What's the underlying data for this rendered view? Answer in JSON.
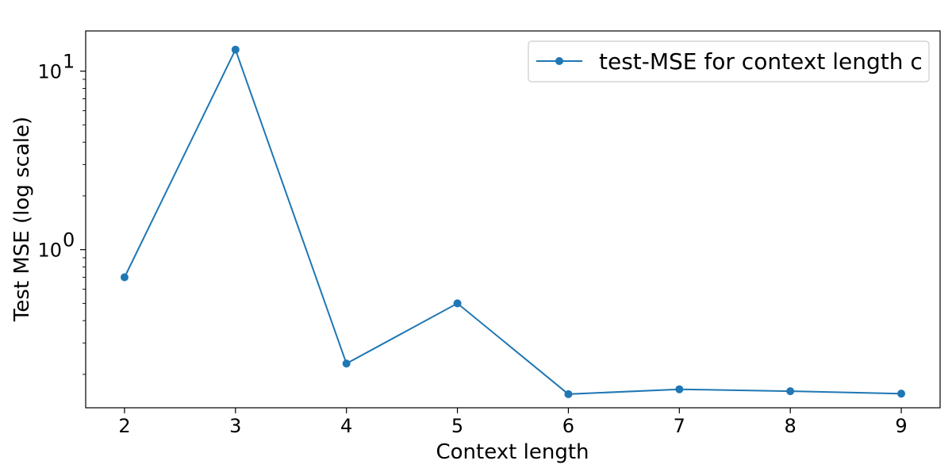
{
  "chart_data": {
    "type": "line",
    "x": [
      2,
      3,
      4,
      5,
      6,
      7,
      8,
      9
    ],
    "series": [
      {
        "name": "test-MSE for context length c",
        "values": [
          0.7,
          13.2,
          0.23,
          0.5,
          0.155,
          0.165,
          0.161,
          0.156
        ],
        "color": "#1f77b4",
        "marker": "circle"
      }
    ],
    "xlabel": "Context length",
    "ylabel": "Test MSE (log scale)",
    "x_ticks": [
      "2",
      "3",
      "4",
      "5",
      "6",
      "7",
      "8",
      "9"
    ],
    "y_scale": "log",
    "y_ticks": [
      {
        "value": 1,
        "base": "10",
        "exp": "0"
      },
      {
        "value": 10,
        "base": "10",
        "exp": "1"
      }
    ],
    "xlim": [
      1.65,
      9.35
    ],
    "ylim": [
      0.13,
      16.8
    ],
    "grid": false,
    "legend_position": "top-right"
  }
}
